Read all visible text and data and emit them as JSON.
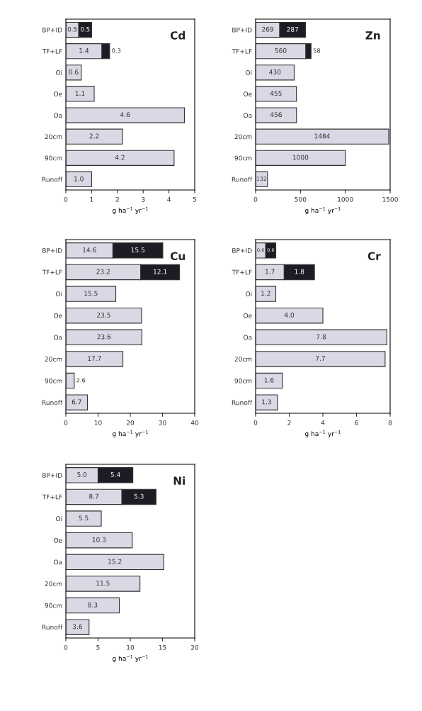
{
  "chart_data": [
    {
      "type": "bar",
      "orientation": "horizontal",
      "stacked": true,
      "title": "Cd",
      "xlabel": "g ha$^{−1}$ yr$^{−1}$",
      "categories": [
        "BP+ID",
        "TF+LF",
        "Oi",
        "Oe",
        "Oa",
        "20cm",
        "90cm",
        "Runoff"
      ],
      "xlim": [
        0,
        5
      ],
      "xticks": [
        0,
        1,
        2,
        3,
        4,
        5
      ],
      "series": [
        {
          "color": "#d9d9e6",
          "values": [
            0.5,
            1.4,
            0.6,
            1.1,
            4.6,
            2.2,
            4.2,
            1.0
          ],
          "value_labels": [
            "0.5",
            "1.4",
            "0.6",
            "1.1",
            "4.6",
            "2.2",
            "4.2",
            "1.0"
          ]
        },
        {
          "color": "#1c1c24",
          "values": [
            0.5,
            0.3,
            null,
            null,
            null,
            null,
            null,
            null
          ],
          "value_labels": [
            "0.5",
            "0.3",
            null,
            null,
            null,
            null,
            null,
            null
          ]
        }
      ]
    },
    {
      "type": "bar",
      "orientation": "horizontal",
      "stacked": true,
      "title": "Zn",
      "xlabel": "g ha$^{−1}$ yr$^{−1}$",
      "categories": [
        "BP+ID",
        "TF+LF",
        "Oi",
        "Oe",
        "Oa",
        "20cm",
        "90cm",
        "Runoff"
      ],
      "xlim": [
        0,
        1500
      ],
      "xticks": [
        0,
        500,
        1000,
        1500
      ],
      "series": [
        {
          "color": "#d9d9e6",
          "values": [
            269,
            560,
            430,
            455,
            456,
            1484,
            1000,
            132
          ],
          "value_labels": [
            "269",
            "560",
            "430",
            "455",
            "456",
            "1484",
            "1000",
            "132"
          ]
        },
        {
          "color": "#1c1c24",
          "values": [
            287,
            58,
            null,
            null,
            null,
            null,
            null,
            null
          ],
          "value_labels": [
            "287",
            "58",
            null,
            null,
            null,
            null,
            null,
            null
          ]
        }
      ]
    },
    {
      "type": "bar",
      "orientation": "horizontal",
      "stacked": true,
      "title": "Cu",
      "xlabel": "g ha$^{−1}$ yr$^{−1}$",
      "categories": [
        "BP+ID",
        "TF+LF",
        "Oi",
        "Oe",
        "Oa",
        "20cm",
        "90cm",
        "Runoff"
      ],
      "xlim": [
        0,
        40
      ],
      "xticks": [
        0,
        10,
        20,
        30,
        40
      ],
      "series": [
        {
          "color": "#d9d9e6",
          "values": [
            14.6,
            23.2,
            15.5,
            23.5,
            23.6,
            17.7,
            2.6,
            6.7
          ],
          "value_labels": [
            "14.6",
            "23.2",
            "15.5",
            "23.5",
            "23.6",
            "17.7",
            "2.6",
            "6.7"
          ]
        },
        {
          "color": "#1c1c24",
          "values": [
            15.5,
            12.1,
            null,
            null,
            null,
            null,
            null,
            null
          ],
          "value_labels": [
            "15.5",
            "12.1",
            null,
            null,
            null,
            null,
            null,
            null
          ]
        }
      ]
    },
    {
      "type": "bar",
      "orientation": "horizontal",
      "stacked": true,
      "title": "Cr",
      "xlabel": "g ha$^{−1}$ yr$^{−1}$",
      "categories": [
        "BP+ID",
        "TF+LF",
        "Oi",
        "Oe",
        "Oa",
        "20cm",
        "90cm",
        "Runoff"
      ],
      "xlim": [
        0,
        8
      ],
      "xticks": [
        0,
        2,
        4,
        6,
        8
      ],
      "series": [
        {
          "color": "#d9d9e6",
          "values": [
            0.6,
            1.7,
            1.2,
            4.0,
            7.8,
            7.7,
            1.6,
            1.3
          ],
          "value_labels": [
            "0.6",
            "1.7",
            "1.2",
            "4.0",
            "7.8",
            "7.7",
            "1.6",
            "1.3"
          ]
        },
        {
          "color": "#1c1c24",
          "values": [
            0.6,
            1.8,
            null,
            null,
            null,
            null,
            null,
            null
          ],
          "value_labels": [
            "0.6",
            "1.8",
            null,
            null,
            null,
            null,
            null,
            null
          ]
        }
      ]
    },
    {
      "type": "bar",
      "orientation": "horizontal",
      "stacked": true,
      "title": "Ni",
      "xlabel": "g ha$^{−1}$ yr$^{−1}$",
      "categories": [
        "BP+ID",
        "TF+LF",
        "Oi",
        "Oe",
        "Oa",
        "20cm",
        "90cm",
        "Runoff"
      ],
      "xlim": [
        0,
        20
      ],
      "xticks": [
        0,
        5,
        10,
        15,
        20
      ],
      "series": [
        {
          "color": "#d9d9e6",
          "values": [
            5.0,
            8.7,
            5.5,
            10.3,
            15.2,
            11.5,
            8.3,
            3.6
          ],
          "value_labels": [
            "5.0",
            "8.7",
            "5.5",
            "10.3",
            "15.2",
            "11.5",
            "8.3",
            "3.6"
          ]
        },
        {
          "color": "#1c1c24",
          "values": [
            5.4,
            5.3,
            null,
            null,
            null,
            null,
            null,
            null
          ],
          "value_labels": [
            "5.4",
            "5.3",
            null,
            null,
            null,
            null,
            null,
            null
          ]
        }
      ]
    }
  ]
}
